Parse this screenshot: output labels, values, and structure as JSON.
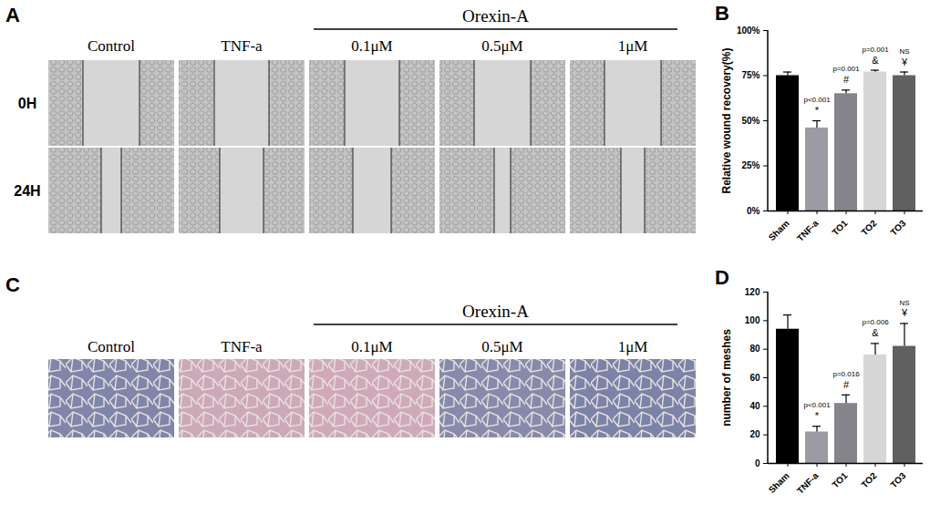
{
  "image_panels": [
    {
      "panel_label": "A",
      "group_label": "Orexin-A",
      "columns": [
        "Control",
        "TNF-a",
        "0.1μM",
        "0.5μM",
        "1μM"
      ],
      "rows": [
        "0H",
        "24H"
      ]
    },
    {
      "panel_label": "C",
      "group_label": "Orexin-A",
      "columns": [
        "Control",
        "TNF-a",
        "0.1μM",
        "0.5μM",
        "1μM"
      ]
    }
  ],
  "chart_data": [
    {
      "panel_label": "B",
      "type": "bar",
      "y_label": "Relative wound recovery(%)",
      "categories": [
        "Sham",
        "TNF-a",
        "TO1",
        "TO2",
        "TO3"
      ],
      "values": [
        75,
        46,
        65,
        77,
        75
      ],
      "errors": [
        2,
        4,
        2,
        1,
        2
      ],
      "colors": [
        "#000000",
        "#9b9ba3",
        "#84848b",
        "#d6d6d6",
        "#606060"
      ],
      "p_values": [
        null,
        "p<0.001",
        "p=0.001",
        "p=0.001",
        "NS"
      ],
      "symbols": [
        null,
        "*",
        "#",
        "&",
        "¥"
      ],
      "ylim": [
        0,
        100
      ],
      "yticks": [
        {
          "value": 0,
          "label": "0%"
        },
        {
          "value": 25,
          "label": "25%"
        },
        {
          "value": 50,
          "label": "50%"
        },
        {
          "value": 75,
          "label": "75%"
        },
        {
          "value": 100,
          "label": "100%"
        }
      ],
      "grid": false
    },
    {
      "panel_label": "D",
      "type": "bar",
      "y_label": "number of meshes",
      "categories": [
        "Sham",
        "TNF-a",
        "TO1",
        "TO2",
        "TO3"
      ],
      "values": [
        94,
        22,
        42,
        76,
        82
      ],
      "errors": [
        10,
        4,
        6,
        8,
        16
      ],
      "colors": [
        "#000000",
        "#9b9ba3",
        "#84848b",
        "#d6d6d6",
        "#606060"
      ],
      "p_values": [
        null,
        "p<0.001",
        "p=0.016",
        "p=0.006",
        "NS"
      ],
      "symbols": [
        null,
        "*",
        "#",
        "&",
        "¥"
      ],
      "ylim": [
        0,
        120
      ],
      "yticks": [
        0,
        20,
        40,
        60,
        80,
        100,
        120
      ],
      "grid": false
    }
  ]
}
